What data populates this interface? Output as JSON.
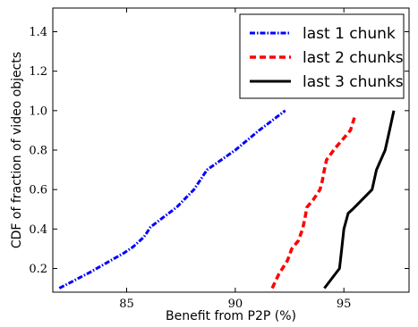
{
  "chart_data": {
    "type": "line",
    "title": "",
    "xlabel": "Benefit from P2P (%)",
    "ylabel": "CDF of fraction of video objects",
    "xlim": [
      81.6,
      98.0
    ],
    "ylim": [
      0.08,
      1.52
    ],
    "xticks": [
      85,
      90,
      95
    ],
    "yticks": [
      0.2,
      0.4,
      0.6,
      0.8,
      1.0,
      1.2,
      1.4
    ],
    "ytick_labels": [
      "0.2",
      "0.4",
      "0.6",
      "0.8",
      "1.0",
      "1.2",
      "1.4"
    ],
    "grid": false,
    "legend_position": "top-right",
    "series": [
      {
        "name": "last 1 chunk",
        "color": "#0000ff",
        "style": "dash-dot",
        "x": [
          81.9,
          83.3,
          84.9,
          85.3,
          85.8,
          86.1,
          87.3,
          88.1,
          88.7,
          90.0,
          91.1,
          92.3
        ],
        "y": [
          0.1,
          0.18,
          0.28,
          0.31,
          0.36,
          0.41,
          0.51,
          0.6,
          0.7,
          0.8,
          0.9,
          1.0
        ]
      },
      {
        "name": "last 2 chunks",
        "color": "#ff0000",
        "style": "dashed",
        "x": [
          91.7,
          92.0,
          92.4,
          92.6,
          92.9,
          93.1,
          93.2,
          93.3,
          93.6,
          93.9,
          94.0,
          94.1,
          94.2,
          94.6,
          95.3,
          95.5
        ],
        "y": [
          0.1,
          0.17,
          0.24,
          0.3,
          0.34,
          0.4,
          0.45,
          0.51,
          0.55,
          0.6,
          0.64,
          0.7,
          0.75,
          0.81,
          0.9,
          0.97
        ]
      },
      {
        "name": "last 3 chunks",
        "color": "#000000",
        "style": "solid",
        "x": [
          94.1,
          94.8,
          94.9,
          95.0,
          95.1,
          95.2,
          95.4,
          96.3,
          96.5,
          96.9,
          97.1,
          97.3
        ],
        "y": [
          0.1,
          0.2,
          0.3,
          0.4,
          0.44,
          0.48,
          0.5,
          0.6,
          0.7,
          0.8,
          0.9,
          1.0
        ]
      }
    ]
  }
}
